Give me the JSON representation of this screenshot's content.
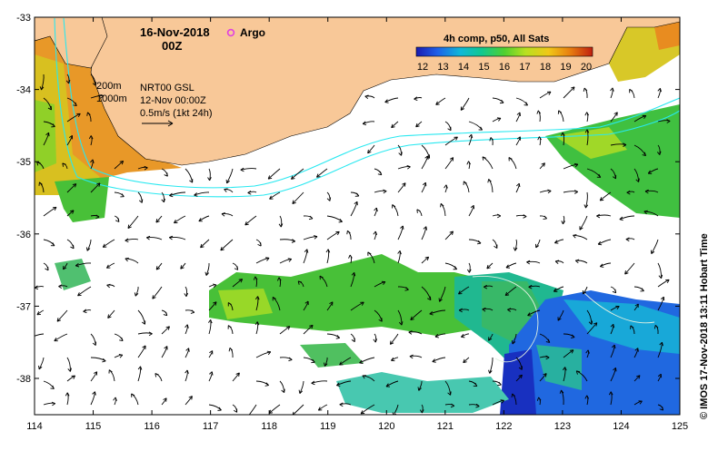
{
  "map": {
    "date": "16-Nov-2018",
    "time": "00Z",
    "argo_label": "Argo",
    "legend_depths": [
      "200m",
      "1000m"
    ],
    "current_source": "NRT00 GSL",
    "current_date": "12-Nov 00:00Z",
    "arrow_scale": "0.5m/s (1kt 24h)",
    "credit": "© IMOS 17-Nov-2018 13:11 Hobart Time",
    "lon_ticks": [
      "114",
      "115",
      "116",
      "117",
      "118",
      "119",
      "120",
      "121",
      "122",
      "123",
      "124",
      "125"
    ],
    "lat_ticks": [
      "-33",
      "-34",
      "-35",
      "-36",
      "-37",
      "-38"
    ],
    "colors": {
      "land": "#f8c898",
      "isobath": "#28e8f0",
      "frame": "#000000",
      "argo": "#e040e0"
    }
  },
  "colorbar": {
    "title": "4h comp, p50, All Sats",
    "ticks": [
      "12",
      "13",
      "14",
      "15",
      "16",
      "17",
      "18",
      "19",
      "20"
    ]
  }
}
